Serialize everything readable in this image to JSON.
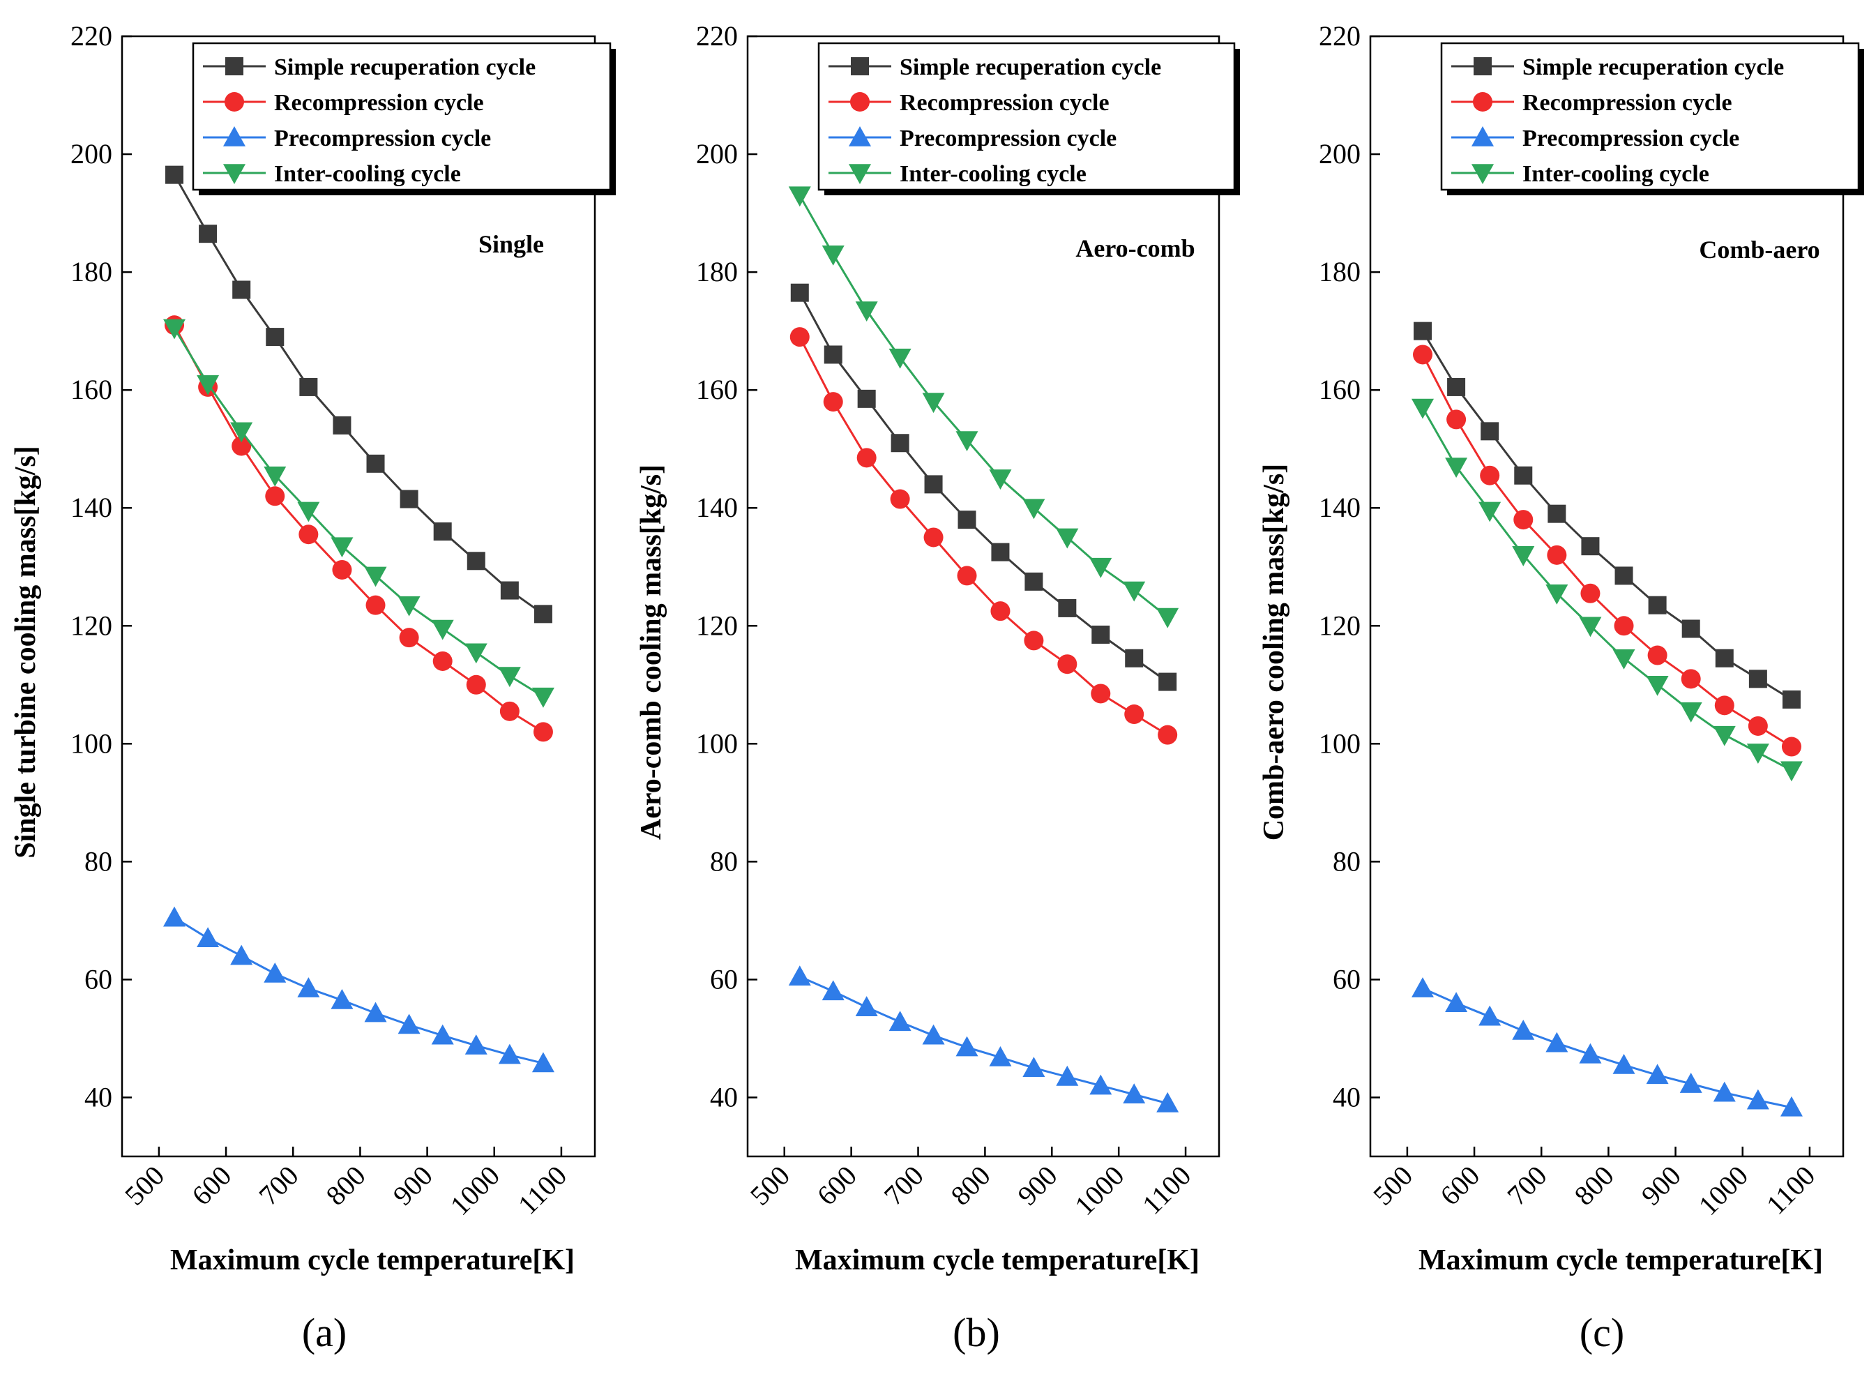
{
  "figure": {
    "x_ticks": [
      500,
      600,
      700,
      800,
      900,
      1000,
      1100
    ],
    "y_ticks": [
      40,
      60,
      80,
      100,
      120,
      140,
      160,
      180,
      200,
      220
    ],
    "colors": {
      "simple": "#3a3a3a",
      "recompression": "#ef2b2b",
      "precompression": "#2f7ce8",
      "intercooling": "#2ea65a"
    },
    "markers": {
      "simple": "square",
      "recompression": "circle",
      "precompression": "triangle-up",
      "intercooling": "triangle-down"
    }
  },
  "chart_data": [
    {
      "type": "line",
      "panel_label": "(a)",
      "annotation": "Single",
      "xlabel": "Maximum cycle temperature[K]",
      "ylabel": "Single turbine cooling mass[kg/s]",
      "xlim": [
        445,
        1150
      ],
      "ylim": [
        30,
        220
      ],
      "legend_position": "top-right",
      "x": [
        523,
        573,
        623,
        673,
        723,
        773,
        823,
        873,
        923,
        973,
        1023,
        1073
      ],
      "series": [
        {
          "key": "simple",
          "name": "Simple recuperation cycle",
          "values": [
            196.5,
            186.5,
            177,
            169,
            160.5,
            154,
            147.5,
            141.5,
            136,
            131,
            126,
            122
          ]
        },
        {
          "key": "recompression",
          "name": "Recompression cycle",
          "values": [
            171,
            160.5,
            150.5,
            142,
            135.5,
            129.5,
            123.5,
            118,
            114,
            110,
            105.5,
            102
          ]
        },
        {
          "key": "precompression",
          "name": "Precompression cycle",
          "values": [
            70.5,
            67,
            64,
            61,
            58.5,
            56.5,
            54.3,
            52.3,
            50.5,
            48.8,
            47.2,
            45.8
          ]
        },
        {
          "key": "intercooling",
          "name": "Inter-cooling cycle",
          "values": [
            170.5,
            161,
            153,
            145.5,
            139.5,
            133.5,
            128.5,
            123.5,
            119.5,
            115.5,
            111.5,
            108
          ]
        }
      ]
    },
    {
      "type": "line",
      "panel_label": "(b)",
      "annotation": "Aero-comb",
      "xlabel": "Maximum cycle temperature[K]",
      "ylabel": "Aero-comb cooling mass[kg/s]",
      "xlim": [
        445,
        1150
      ],
      "ylim": [
        30,
        220
      ],
      "legend_position": "top-right",
      "x": [
        523,
        573,
        623,
        673,
        723,
        773,
        823,
        873,
        923,
        973,
        1023,
        1073
      ],
      "series": [
        {
          "key": "simple",
          "name": "Simple recuperation cycle",
          "values": [
            176.5,
            166,
            158.5,
            151,
            144,
            138,
            132.5,
            127.5,
            123,
            118.5,
            114.5,
            110.5
          ]
        },
        {
          "key": "recompression",
          "name": "Recompression cycle",
          "values": [
            169,
            158,
            148.5,
            141.5,
            135,
            128.5,
            122.5,
            117.5,
            113.5,
            108.5,
            105,
            101.5
          ]
        },
        {
          "key": "precompression",
          "name": "Precompression cycle",
          "values": [
            60.5,
            58,
            55.3,
            52.8,
            50.5,
            48.5,
            46.8,
            45,
            43.5,
            42,
            40.5,
            39
          ]
        },
        {
          "key": "intercooling",
          "name": "Inter-cooling cycle",
          "values": [
            193,
            183,
            173.5,
            165.5,
            158,
            151.5,
            145,
            140,
            135,
            130,
            126,
            121.5
          ]
        }
      ]
    },
    {
      "type": "line",
      "panel_label": "(c)",
      "annotation": "Comb-aero",
      "xlabel": "Maximum cycle temperature[K]",
      "ylabel": "Comb-aero cooling mass[kg/s]",
      "xlim": [
        445,
        1150
      ],
      "ylim": [
        30,
        220
      ],
      "legend_position": "top-right",
      "x": [
        523,
        573,
        623,
        673,
        723,
        773,
        823,
        873,
        923,
        973,
        1023,
        1073
      ],
      "series": [
        {
          "key": "simple",
          "name": "Simple recuperation cycle",
          "values": [
            170,
            160.5,
            153,
            145.5,
            139,
            133.5,
            128.5,
            123.5,
            119.5,
            114.5,
            111,
            107.5
          ]
        },
        {
          "key": "recompression",
          "name": "Recompression cycle",
          "values": [
            166,
            155,
            145.5,
            138,
            132,
            125.5,
            120,
            115,
            111,
            106.5,
            103,
            99.5
          ]
        },
        {
          "key": "precompression",
          "name": "Precompression cycle",
          "values": [
            58.5,
            56,
            53.7,
            51.3,
            49.2,
            47.3,
            45.5,
            43.8,
            42.3,
            40.8,
            39.5,
            38.3
          ]
        },
        {
          "key": "intercooling",
          "name": "Inter-cooling cycle",
          "values": [
            157,
            147,
            139.5,
            132,
            125.5,
            120,
            114.5,
            110,
            105.5,
            101.5,
            98.5,
            95.5
          ]
        }
      ]
    }
  ]
}
